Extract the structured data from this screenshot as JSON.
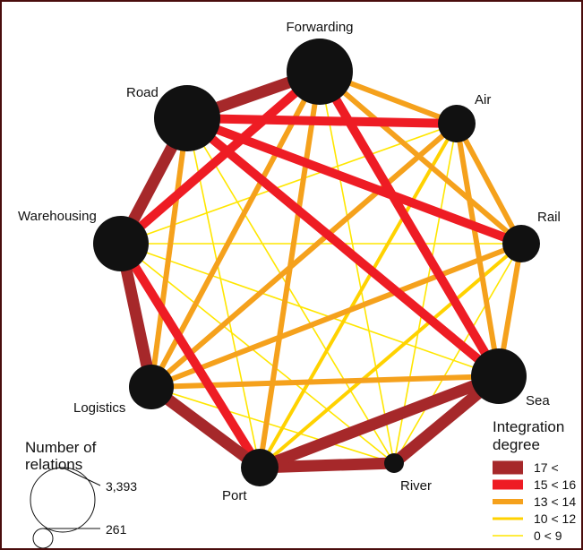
{
  "network": {
    "nodes": [
      {
        "id": "forwarding",
        "label": "Forwarding",
        "size": "largest"
      },
      {
        "id": "air",
        "label": "Air",
        "size": "small"
      },
      {
        "id": "rail",
        "label": "Rail",
        "size": "small"
      },
      {
        "id": "sea",
        "label": "Sea",
        "size": "large"
      },
      {
        "id": "river",
        "label": "River",
        "size": "smallest"
      },
      {
        "id": "port",
        "label": "Port",
        "size": "small"
      },
      {
        "id": "logistics",
        "label": "Logistics",
        "size": "medium"
      },
      {
        "id": "warehousing",
        "label": "Warehousing",
        "size": "large"
      },
      {
        "id": "road",
        "label": "Road",
        "size": "largest"
      }
    ],
    "edges": [
      {
        "from": "road",
        "to": "forwarding",
        "degree": "17 <"
      },
      {
        "from": "road",
        "to": "warehousing",
        "degree": "17 <"
      },
      {
        "from": "warehousing",
        "to": "logistics",
        "degree": "17 <"
      },
      {
        "from": "logistics",
        "to": "port",
        "degree": "17 <"
      },
      {
        "from": "port",
        "to": "river",
        "degree": "17 <"
      },
      {
        "from": "river",
        "to": "sea",
        "degree": "17 <"
      },
      {
        "from": "port",
        "to": "sea",
        "degree": "17 <"
      },
      {
        "from": "road",
        "to": "air",
        "degree": "15 < 16"
      },
      {
        "from": "road",
        "to": "rail",
        "degree": "15 < 16"
      },
      {
        "from": "forwarding",
        "to": "warehousing",
        "degree": "15 < 16"
      },
      {
        "from": "forwarding",
        "to": "sea",
        "degree": "15 < 16"
      },
      {
        "from": "road",
        "to": "sea",
        "degree": "15 < 16"
      },
      {
        "from": "warehousing",
        "to": "port",
        "degree": "15 < 16"
      },
      {
        "from": "forwarding",
        "to": "air",
        "degree": "13 < 14"
      },
      {
        "from": "air",
        "to": "rail",
        "degree": "13 < 14"
      },
      {
        "from": "rail",
        "to": "sea",
        "degree": "13 < 14"
      },
      {
        "from": "forwarding",
        "to": "rail",
        "degree": "13 < 14"
      },
      {
        "from": "air",
        "to": "sea",
        "degree": "13 < 14"
      },
      {
        "from": "road",
        "to": "logistics",
        "degree": "13 < 14"
      },
      {
        "from": "forwarding",
        "to": "logistics",
        "degree": "13 < 14"
      },
      {
        "from": "air",
        "to": "logistics",
        "degree": "13 < 14"
      },
      {
        "from": "rail",
        "to": "logistics",
        "degree": "13 < 14"
      },
      {
        "from": "sea",
        "to": "logistics",
        "degree": "13 < 14"
      },
      {
        "from": "forwarding",
        "to": "port",
        "degree": "13 < 14"
      },
      {
        "from": "sea",
        "to": "port",
        "degree": "10 < 12"
      },
      {
        "from": "rail",
        "to": "port",
        "degree": "10 < 12"
      },
      {
        "from": "air",
        "to": "port",
        "degree": "10 < 12"
      },
      {
        "from": "warehousing",
        "to": "air",
        "degree": "0 < 9"
      },
      {
        "from": "warehousing",
        "to": "rail",
        "degree": "0 < 9"
      },
      {
        "from": "warehousing",
        "to": "sea",
        "degree": "0 < 9"
      },
      {
        "from": "warehousing",
        "to": "river",
        "degree": "0 < 9"
      },
      {
        "from": "road",
        "to": "river",
        "degree": "0 < 9"
      },
      {
        "from": "road",
        "to": "port",
        "degree": "0 < 9"
      },
      {
        "from": "forwarding",
        "to": "river",
        "degree": "0 < 9"
      },
      {
        "from": "air",
        "to": "river",
        "degree": "0 < 9"
      },
      {
        "from": "rail",
        "to": "river",
        "degree": "0 < 9"
      },
      {
        "from": "logistics",
        "to": "river",
        "degree": "0 < 9"
      },
      {
        "from": "logistics",
        "to": "sea",
        "degree": "0 < 9"
      }
    ]
  },
  "legend_size": {
    "title": "Number of relations",
    "max_label": "3,393",
    "min_label": "261"
  },
  "legend_degree": {
    "title": "Integration degree",
    "items": [
      {
        "label": "17 <",
        "color": "#a6282a"
      },
      {
        "label": "15 < 16",
        "color": "#ee1c24"
      },
      {
        "label": "13 < 14",
        "color": "#f5a11c"
      },
      {
        "label": "10 < 12",
        "color": "#ffd200"
      },
      {
        "label": "0 < 9",
        "color": "#ffe600"
      }
    ]
  },
  "colors": {
    "node": "#111111",
    "frame": "#4a0d0d"
  }
}
